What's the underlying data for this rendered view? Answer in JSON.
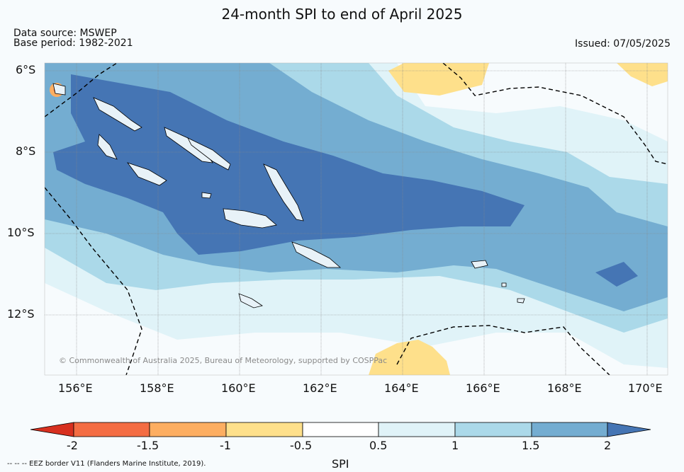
{
  "title": "24-month SPI to end of April 2025",
  "data_source": "Data source: MSWEP",
  "base_period": "Base period: 1982-2021",
  "issued": "Issued: 07/05/2025",
  "lat_labels": [
    "6°S",
    "8°S",
    "10°S",
    "12°S"
  ],
  "lon_labels": [
    "156°E",
    "158°E",
    "160°E",
    "162°E",
    "164°E",
    "166°E",
    "168°E",
    "170°E"
  ],
  "copyright": "© Commonwealth of Australia 2025, Bureau of Meteorology, supported by COSPPac",
  "colorbar": {
    "label": "SPI",
    "ticks": [
      "-2",
      "-1.5",
      "-1",
      "-0.5",
      "0.5",
      "1",
      "1.5",
      "2"
    ],
    "colors": [
      "#d7301f",
      "#f46d43",
      "#fdae61",
      "#fee08b",
      "#ffffff",
      "#e0f3f8",
      "#abd9e9",
      "#74add1",
      "#4575b4"
    ]
  },
  "legend_note": "--  --  -- EEZ border V11 (Flanders Marine Institute, 2019).",
  "map_colors": {
    "background": "#f7fbfd",
    "spi_above_0_5": "#e0f3f8",
    "spi_above_1": "#abd9e9",
    "spi_above_1_5": "#74add1",
    "spi_above_2": "#4575b4",
    "spi_below_minus_0_5": "#fee08b",
    "spi_below_minus_1": "#fdae61",
    "spi_below_minus_2": "#d7301f"
  }
}
